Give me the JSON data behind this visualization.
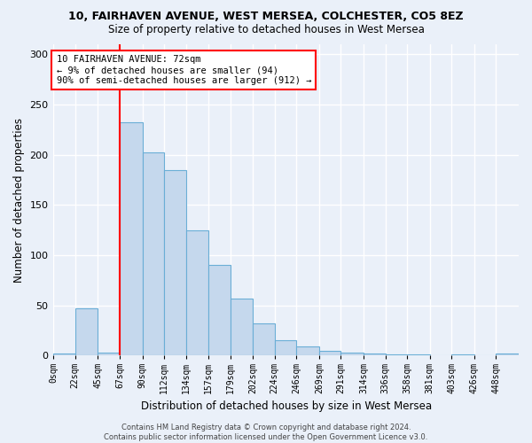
{
  "title_line1": "10, FAIRHAVEN AVENUE, WEST MERSEA, COLCHESTER, CO5 8EZ",
  "title_line2": "Size of property relative to detached houses in West Mersea",
  "xlabel": "Distribution of detached houses by size in West Mersea",
  "ylabel": "Number of detached properties",
  "footer_line1": "Contains HM Land Registry data © Crown copyright and database right 2024.",
  "footer_line2": "Contains public sector information licensed under the Open Government Licence v3.0.",
  "bin_labels": [
    "0sqm",
    "22sqm",
    "45sqm",
    "67sqm",
    "90sqm",
    "112sqm",
    "134sqm",
    "157sqm",
    "179sqm",
    "202sqm",
    "224sqm",
    "246sqm",
    "269sqm",
    "291sqm",
    "314sqm",
    "336sqm",
    "358sqm",
    "381sqm",
    "403sqm",
    "426sqm",
    "448sqm"
  ],
  "bar_values": [
    2,
    47,
    3,
    232,
    202,
    185,
    125,
    90,
    57,
    32,
    15,
    9,
    5,
    3,
    2,
    1,
    1,
    0,
    1,
    0,
    2
  ],
  "bar_color": "#c5d8ed",
  "bar_edge_color": "#6aaed6",
  "property_line_x": 67,
  "property_line_color": "red",
  "annotation_text": "10 FAIRHAVEN AVENUE: 72sqm\n← 9% of detached houses are smaller (94)\n90% of semi-detached houses are larger (912) →",
  "annotation_box_color": "white",
  "annotation_box_edge": "red",
  "ylim": [
    0,
    310
  ],
  "background_color": "#eaf0f9",
  "grid_color": "#ffffff",
  "bin_width": 22.5
}
